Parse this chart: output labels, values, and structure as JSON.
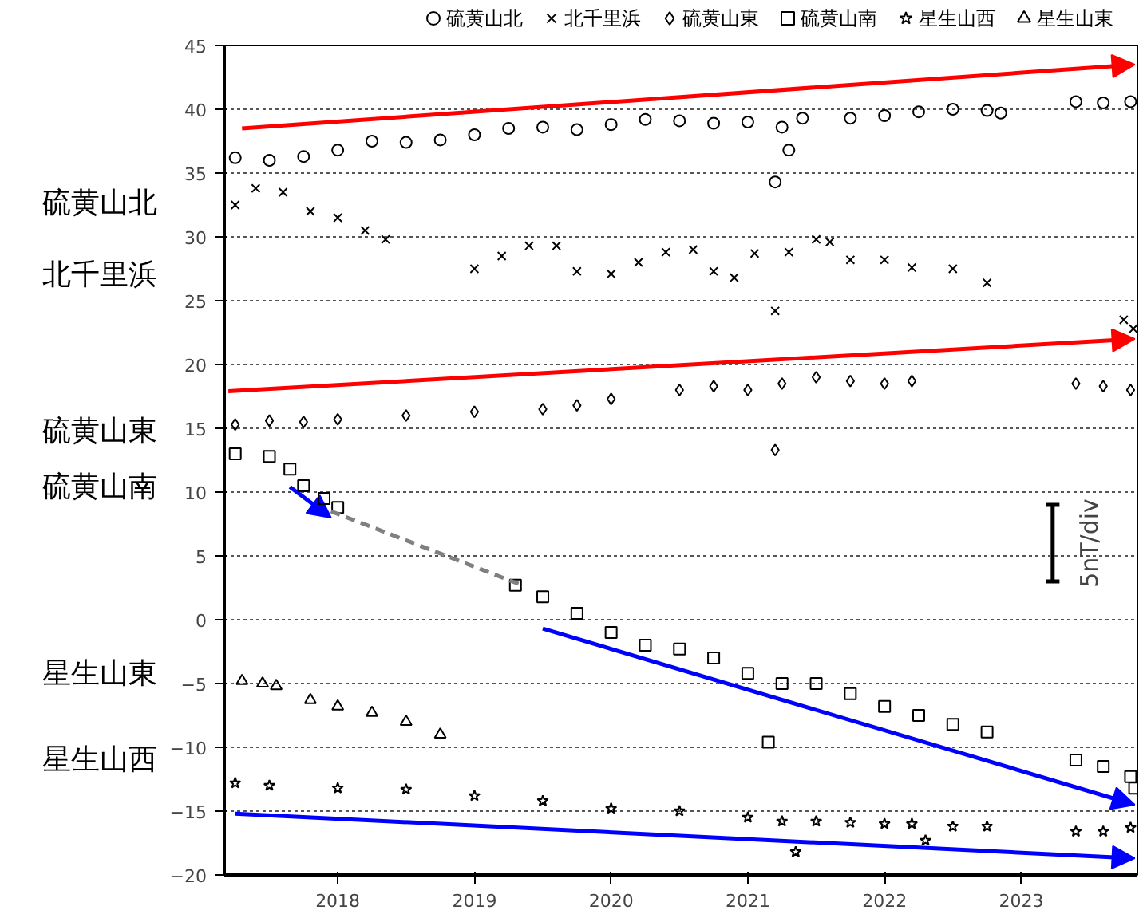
{
  "chart_data": {
    "type": "scatter",
    "xlim": [
      2017.17,
      2023.85
    ],
    "xticks": [
      2018,
      2019,
      2020,
      2021,
      2022,
      2023
    ],
    "ylim": [
      -20,
      45
    ],
    "yticks": [
      -20,
      -15,
      -10,
      -5,
      0,
      5,
      10,
      15,
      20,
      25,
      30,
      35,
      40,
      45
    ],
    "grid": "y",
    "legend": "top right",
    "series": [
      {
        "name": "硫黄山北",
        "color": "#000000",
        "marker": "circle",
        "x": [
          2017.25,
          2017.5,
          2017.75,
          2018.0,
          2018.25,
          2018.5,
          2018.75,
          2019.0,
          2019.25,
          2019.5,
          2019.75,
          2020.0,
          2020.25,
          2020.5,
          2020.75,
          2021.0,
          2021.2,
          2021.25,
          2021.3,
          2021.4,
          2021.75,
          2022.0,
          2022.25,
          2022.5,
          2022.75,
          2022.85,
          2023.4,
          2023.6,
          2023.8
        ],
        "values": [
          36.2,
          36.0,
          36.3,
          36.8,
          37.5,
          37.4,
          37.6,
          38.0,
          38.5,
          38.6,
          38.4,
          38.8,
          39.2,
          39.1,
          38.9,
          39.0,
          34.3,
          38.6,
          36.8,
          39.3,
          39.3,
          39.5,
          39.8,
          40.0,
          39.9,
          39.7,
          40.6,
          40.5,
          40.6
        ]
      },
      {
        "name": "北千里浜",
        "color": "#000000",
        "marker": "cross",
        "x": [
          2017.25,
          2017.4,
          2017.6,
          2017.8,
          2018.0,
          2018.2,
          2018.35,
          2019.0,
          2019.2,
          2019.4,
          2019.6,
          2019.75,
          2020.0,
          2020.2,
          2020.4,
          2020.6,
          2020.75,
          2020.9,
          2021.05,
          2021.2,
          2021.3,
          2021.5,
          2021.6,
          2021.75,
          2022.0,
          2022.2,
          2022.5,
          2022.75,
          2023.75,
          2023.82
        ],
        "values": [
          32.5,
          33.8,
          33.5,
          32.0,
          31.5,
          30.5,
          29.8,
          27.5,
          28.5,
          29.3,
          29.3,
          27.3,
          27.1,
          28.0,
          28.8,
          29.0,
          27.3,
          26.8,
          28.7,
          24.2,
          28.8,
          29.8,
          29.6,
          28.2,
          28.2,
          27.6,
          27.5,
          26.4,
          23.5,
          22.8
        ]
      },
      {
        "name": "硫黄山東",
        "color": "#000000",
        "marker": "diamond",
        "x": [
          2017.25,
          2017.5,
          2017.75,
          2018.0,
          2018.5,
          2019.0,
          2019.5,
          2019.75,
          2020.0,
          2020.5,
          2020.75,
          2021.0,
          2021.2,
          2021.25,
          2021.5,
          2021.75,
          2022.0,
          2022.2,
          2023.4,
          2023.6,
          2023.8
        ],
        "values": [
          15.3,
          15.6,
          15.5,
          15.7,
          16.0,
          16.3,
          16.5,
          16.8,
          17.3,
          18.0,
          18.3,
          18.0,
          13.3,
          18.5,
          19.0,
          18.7,
          18.5,
          18.7,
          18.5,
          18.3,
          18.0
        ]
      },
      {
        "name": "硫黄山南",
        "color": "#000000",
        "marker": "square",
        "x": [
          2017.25,
          2017.5,
          2017.65,
          2017.75,
          2017.9,
          2018.0,
          2019.3,
          2019.5,
          2019.75,
          2020.0,
          2020.25,
          2020.5,
          2020.75,
          2021.0,
          2021.15,
          2021.25,
          2021.5,
          2021.75,
          2022.0,
          2022.25,
          2022.5,
          2022.75,
          2023.4,
          2023.6,
          2023.8,
          2023.83
        ],
        "values": [
          13.0,
          12.8,
          11.8,
          10.5,
          9.5,
          8.8,
          2.7,
          1.8,
          0.5,
          -1.0,
          -2.0,
          -2.3,
          -3.0,
          -4.2,
          -9.6,
          -5.0,
          -5.0,
          -5.8,
          -6.8,
          -7.5,
          -8.2,
          -8.8,
          -11.0,
          -11.5,
          -12.3,
          -13.2
        ]
      },
      {
        "name": "星生山西",
        "color": "#000000",
        "marker": "star",
        "x": [
          2017.25,
          2017.5,
          2018.0,
          2018.5,
          2019.0,
          2019.5,
          2020.0,
          2020.5,
          2021.0,
          2021.25,
          2021.35,
          2021.5,
          2021.75,
          2022.0,
          2022.2,
          2022.3,
          2022.5,
          2022.75,
          2023.4,
          2023.6,
          2023.8
        ],
        "values": [
          -12.8,
          -13.0,
          -13.2,
          -13.3,
          -13.8,
          -14.2,
          -14.8,
          -15.0,
          -15.5,
          -15.8,
          -18.2,
          -15.8,
          -15.9,
          -16.0,
          -16.0,
          -17.3,
          -16.2,
          -16.2,
          -16.6,
          -16.6,
          -16.3
        ]
      },
      {
        "name": "星生山東",
        "color": "#000000",
        "marker": "triangle",
        "x": [
          2017.3,
          2017.45,
          2017.55,
          2017.8,
          2018.0,
          2018.25,
          2018.5,
          2018.75
        ],
        "values": [
          -4.8,
          -5.0,
          -5.2,
          -6.3,
          -6.8,
          -7.3,
          -8.0,
          -9.0
        ]
      },
      {
        "type": "line",
        "line_style": "dashed",
        "color": "#808080",
        "x": [
          2017.95,
          2019.35
        ],
        "values": [
          8.5,
          2.7
        ]
      }
    ],
    "annotations": [
      "硫黄山北",
      "北千里浜",
      "硫黄山東",
      "硫黄山南",
      "星生山東",
      "星生山西",
      "5nT/div"
    ]
  }
}
